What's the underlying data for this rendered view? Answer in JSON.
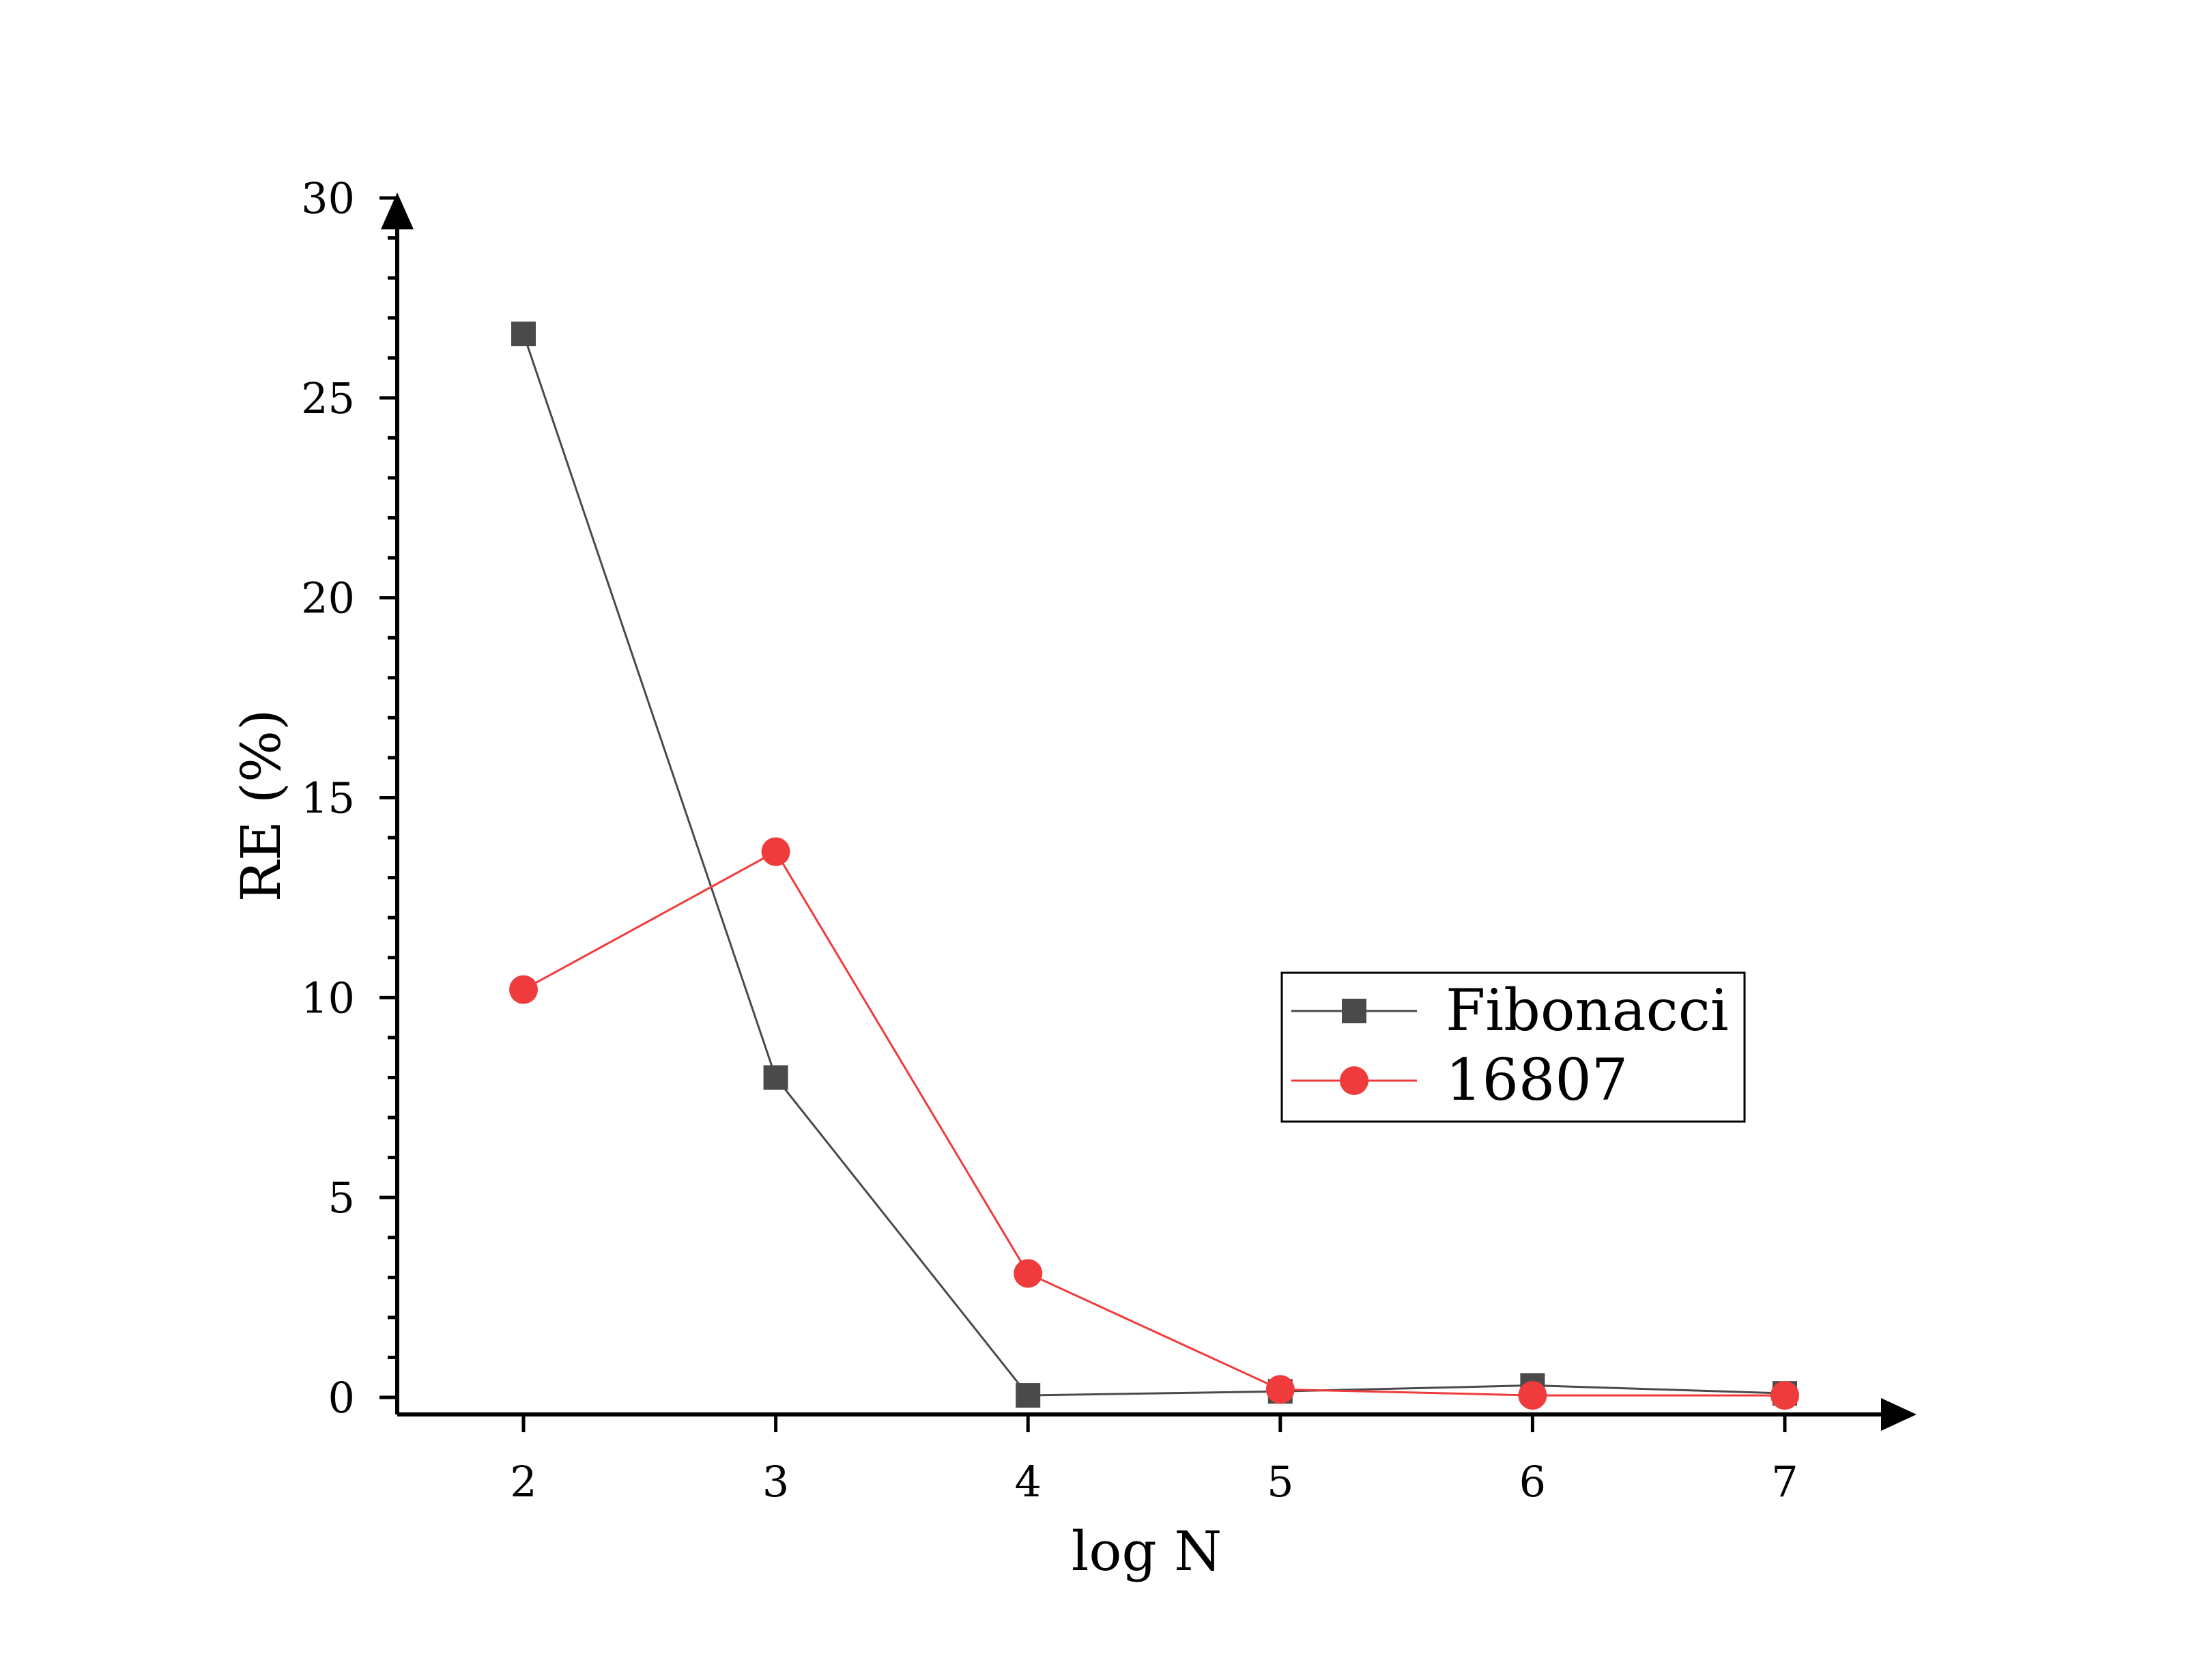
{
  "chart_data": {
    "type": "line",
    "title": "",
    "xlabel": "log N",
    "ylabel": "RE (%)",
    "x": [
      2,
      3,
      4,
      5,
      6,
      7
    ],
    "xlim": [
      1.5,
      7.5
    ],
    "ylim": [
      0,
      30
    ],
    "xticks": [
      2,
      3,
      4,
      5,
      6,
      7
    ],
    "yticks": [
      0,
      5,
      10,
      15,
      20,
      25,
      30
    ],
    "grid": false,
    "legend_position": "center-right",
    "series": [
      {
        "name": "Fibonacci",
        "values": [
          26.6,
          8.0,
          0.05,
          0.15,
          0.3,
          0.1
        ],
        "color": "#4a4a4a",
        "marker": "square"
      },
      {
        "name": "16807",
        "values": [
          10.2,
          13.65,
          3.1,
          0.2,
          0.05,
          0.05
        ],
        "color": "#ef3b3b",
        "marker": "circle"
      }
    ]
  }
}
